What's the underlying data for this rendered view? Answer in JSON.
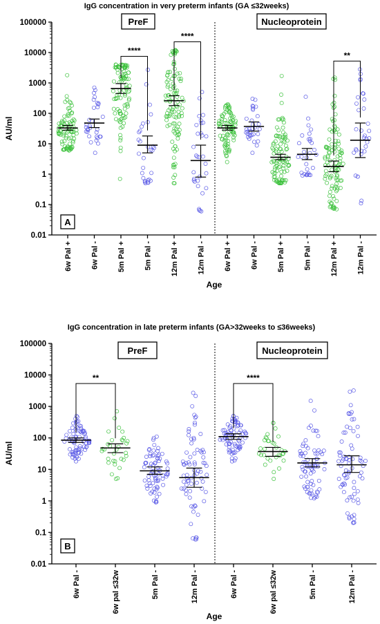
{
  "colors": {
    "green": "#3ec23e",
    "blue": "#5a5ae6",
    "black": "#000000"
  },
  "chart_data": [
    {
      "type": "scatter",
      "subtype": "dot-plot-median-ci",
      "panel": "A",
      "title": "IgG concentration in very preterm infants (GA ≤32weeks)",
      "xlabel": "Age",
      "ylabel": "AU/ml",
      "yscale": "log",
      "ylim": [
        0.01,
        100000
      ],
      "yticks": [
        "0.01",
        "0.1",
        "1",
        "10",
        "100",
        "1000",
        "10000",
        "100000"
      ],
      "groups": [
        "PreF",
        "Nucleoprotein"
      ],
      "categories": [
        "6w Pal +",
        "6w Pal -",
        "5m Pal +",
        "5m Pal -",
        "12m Pal +",
        "12m Pal -",
        "6w Pal +",
        "6w Pal -",
        "5m Pal +",
        "5m Pal -",
        "12m Pal +",
        "12m Pal -"
      ],
      "series": [
        {
          "category": "6w Pal +",
          "group": "PreF",
          "color": "green",
          "n": 90,
          "median": 33,
          "ci": [
            28,
            40
          ],
          "min": 6,
          "max": 1800
        },
        {
          "category": "6w Pal -",
          "group": "PreF",
          "color": "blue",
          "n": 32,
          "median": 48,
          "ci": [
            34,
            65
          ],
          "min": 5,
          "max": 700
        },
        {
          "category": "5m Pal +",
          "group": "PreF",
          "color": "green",
          "n": 100,
          "median": 650,
          "ci": [
            450,
            950
          ],
          "min": 0.7,
          "max": 4000
        },
        {
          "category": "5m Pal -",
          "group": "PreF",
          "color": "blue",
          "n": 30,
          "median": 9,
          "ci": [
            5,
            18
          ],
          "min": 0.5,
          "max": 2700
        },
        {
          "category": "12m Pal +",
          "group": "PreF",
          "color": "green",
          "n": 110,
          "median": 260,
          "ci": [
            180,
            380
          ],
          "min": 0.5,
          "max": 12000
        },
        {
          "category": "12m Pal -",
          "group": "PreF",
          "color": "blue",
          "n": 32,
          "median": 2.8,
          "ci": [
            0.8,
            9
          ],
          "min": 0.06,
          "max": 500
        },
        {
          "category": "6w Pal +",
          "group": "Nucleoprotein",
          "color": "green",
          "n": 90,
          "median": 33,
          "ci": [
            28,
            40
          ],
          "min": 2.5,
          "max": 200
        },
        {
          "category": "6w Pal -",
          "group": "Nucleoprotein",
          "color": "blue",
          "n": 32,
          "median": 37,
          "ci": [
            26,
            52
          ],
          "min": 5,
          "max": 300
        },
        {
          "category": "5m Pal +",
          "group": "Nucleoprotein",
          "color": "green",
          "n": 100,
          "median": 3.6,
          "ci": [
            3,
            4.5
          ],
          "min": 0.5,
          "max": 1700
        },
        {
          "category": "5m Pal -",
          "group": "Nucleoprotein",
          "color": "blue",
          "n": 30,
          "median": 4.5,
          "ci": [
            3,
            7
          ],
          "min": 0.9,
          "max": 350
        },
        {
          "category": "12m Pal +",
          "group": "Nucleoprotein",
          "color": "green",
          "n": 110,
          "median": 1.8,
          "ci": [
            1.2,
            2.7
          ],
          "min": 0.07,
          "max": 1500
        },
        {
          "category": "12m Pal -",
          "group": "Nucleoprotein",
          "color": "blue",
          "n": 32,
          "median": 13,
          "ci": [
            3.5,
            48
          ],
          "min": 0.11,
          "max": 2800
        }
      ],
      "annotations": [
        {
          "text": "****",
          "between": [
            "5m Pal +",
            "5m Pal -"
          ],
          "group": "PreF"
        },
        {
          "text": "****",
          "between": [
            "12m Pal +",
            "12m Pal -"
          ],
          "group": "PreF"
        },
        {
          "text": "**",
          "between": [
            "12m Pal +",
            "12m Pal -"
          ],
          "group": "Nucleoprotein"
        }
      ]
    },
    {
      "type": "scatter",
      "subtype": "dot-plot-median-ci",
      "panel": "B",
      "title": "IgG concentration in late preterm infants (GA>32weeks to ≤36weeks)",
      "xlabel": "Age",
      "ylabel": "AU/ml",
      "yscale": "log",
      "ylim": [
        0.01,
        100000
      ],
      "yticks": [
        "0.01",
        "0.1",
        "1",
        "10",
        "100",
        "1000",
        "10000",
        "100000"
      ],
      "groups": [
        "PreF",
        "Nucleoprotein"
      ],
      "categories": [
        "6w Pal -",
        "6w pal ≤32w",
        "5m Pal -",
        "12m Pal -",
        "6w Pal -",
        "6w pal ≤32w",
        "5m Pal -",
        "12m Pal -"
      ],
      "series": [
        {
          "category": "6w Pal -",
          "group": "PreF",
          "color": "blue",
          "n": 80,
          "median": 85,
          "ci": [
            72,
            100
          ],
          "min": 18,
          "max": 500
        },
        {
          "category": "6w pal ≤32w",
          "group": "PreF",
          "color": "green",
          "n": 32,
          "median": 48,
          "ci": [
            34,
            65
          ],
          "min": 5,
          "max": 700
        },
        {
          "category": "5m Pal -",
          "group": "PreF",
          "color": "blue",
          "n": 75,
          "median": 9,
          "ci": [
            7,
            12
          ],
          "min": 0.9,
          "max": 110
        },
        {
          "category": "12m Pal -",
          "group": "PreF",
          "color": "blue",
          "n": 75,
          "median": 5.5,
          "ci": [
            2.7,
            11
          ],
          "min": 0.06,
          "max": 2700
        },
        {
          "category": "6w Pal -",
          "group": "Nucleoprotein",
          "color": "blue",
          "n": 80,
          "median": 110,
          "ci": [
            90,
            135
          ],
          "min": 18,
          "max": 500
        },
        {
          "category": "6w pal ≤32w",
          "group": "Nucleoprotein",
          "color": "green",
          "n": 32,
          "median": 37,
          "ci": [
            26,
            50
          ],
          "min": 5,
          "max": 300
        },
        {
          "category": "5m Pal -",
          "group": "Nucleoprotein",
          "color": "blue",
          "n": 75,
          "median": 16,
          "ci": [
            12,
            22
          ],
          "min": 1.2,
          "max": 1500
        },
        {
          "category": "12m Pal -",
          "group": "Nucleoprotein",
          "color": "blue",
          "n": 75,
          "median": 14,
          "ci": [
            8,
            27
          ],
          "min": 0.2,
          "max": 3200
        }
      ],
      "annotations": [
        {
          "text": "**",
          "between": [
            "6w Pal -",
            "6w pal ≤32w"
          ],
          "group": "PreF"
        },
        {
          "text": "****",
          "between": [
            "6w Pal -",
            "6w pal ≤32w"
          ],
          "group": "Nucleoprotein"
        }
      ]
    }
  ]
}
